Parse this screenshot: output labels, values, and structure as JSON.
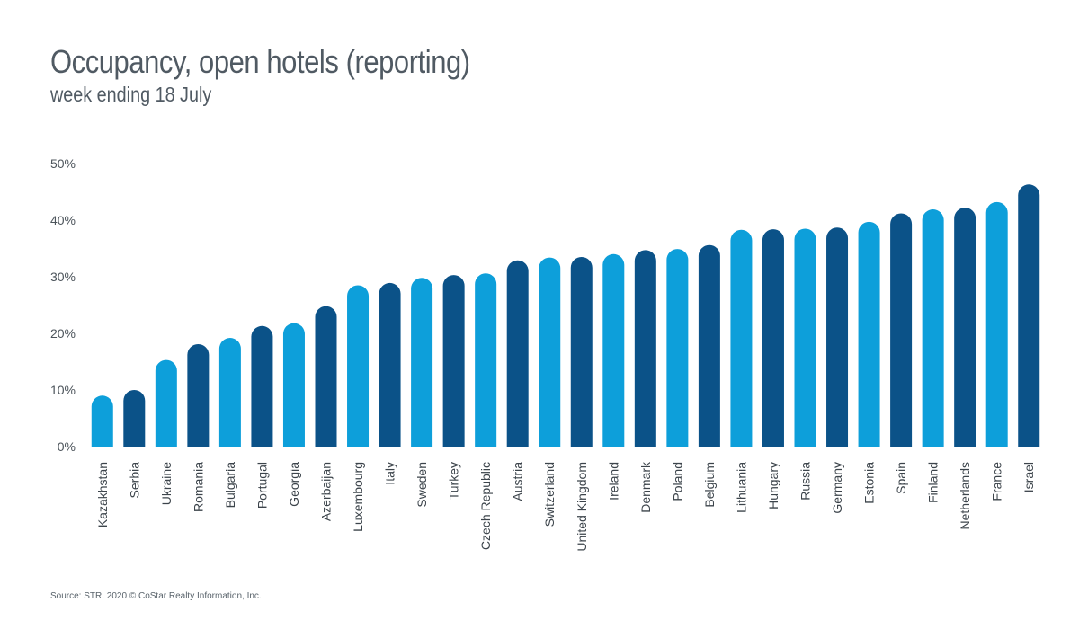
{
  "title": "Occupancy, open hotels (reporting)",
  "subtitle": "week ending 18 July",
  "source": "Source: STR. 2020 © CoStar Realty Information, Inc.",
  "colors": {
    "light": "#0d9fda",
    "dark": "#0b5288"
  },
  "chart_data": {
    "type": "bar",
    "title": "Occupancy, open hotels (reporting)",
    "subtitle": "week ending 18 July",
    "xlabel": "",
    "ylabel": "",
    "ylim": [
      0,
      50
    ],
    "yticks": [
      "0%",
      "10%",
      "20%",
      "30%",
      "40%",
      "50%"
    ],
    "yticks_values": [
      0,
      10,
      20,
      30,
      40,
      50
    ],
    "grid": false,
    "categories": [
      "Kazakhstan",
      "Serbia",
      "Ukraine",
      "Romania",
      "Bulgaria",
      "Portugal",
      "Georgia",
      "Azerbaijan",
      "Luxembourg",
      "Italy",
      "Sweden",
      "Turkey",
      "Czech Republic",
      "Austria",
      "Switzerland",
      "United Kingdom",
      "Ireland",
      "Denmark",
      "Poland",
      "Belgium",
      "Lithuania",
      "Hungary",
      "Russia",
      "Germany",
      "Estonia",
      "Spain",
      "Finland",
      "Netherlands",
      "France",
      "Israel"
    ],
    "values": [
      9.0,
      10.0,
      15.3,
      18.1,
      19.2,
      21.3,
      21.8,
      24.8,
      28.5,
      28.9,
      29.8,
      30.3,
      30.6,
      32.9,
      33.4,
      33.5,
      34.0,
      34.7,
      34.9,
      35.6,
      38.3,
      38.4,
      38.5,
      38.7,
      39.7,
      41.2,
      41.9,
      42.2,
      43.2,
      46.3
    ],
    "bar_colors": [
      "light",
      "dark",
      "light",
      "dark",
      "light",
      "dark",
      "light",
      "dark",
      "light",
      "dark",
      "light",
      "dark",
      "light",
      "dark",
      "light",
      "dark",
      "light",
      "dark",
      "light",
      "dark",
      "light",
      "dark",
      "light",
      "dark",
      "light",
      "dark",
      "light",
      "dark",
      "light",
      "dark"
    ]
  }
}
